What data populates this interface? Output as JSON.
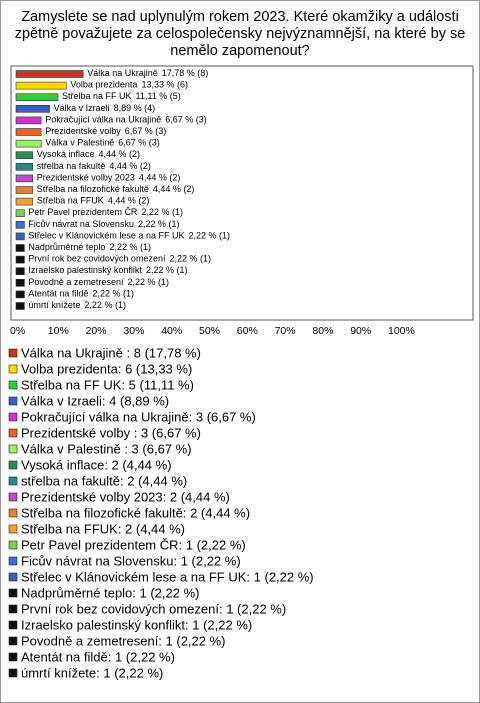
{
  "chart_data": {
    "type": "bar",
    "orientation": "horizontal",
    "title": "Zamyslete se nad uplynulým rokem 2023. Které okamžiky a události zpětně považujete za celospolečensky nejvýznamnější, na které by se nemělo zapomenout?",
    "categories": [
      "Válka na Ukrajině",
      "Volba prezidenta",
      "Střelba na FF UK",
      "Válka v Izraeli",
      "Pokračující válka na Ukrajině",
      "Prezidentské volby",
      "Válka v Palestině",
      "Vysoká inflace",
      "střelba na fakultě",
      "Prezidentské volby 2023",
      "Střelba na filozofické fakultě",
      "Střelba na FFUK",
      "Petr Pavel prezidentem ČR",
      "Ficův návrat na Slovensku",
      "Střelec v Klánovickém lese a na FF UK",
      "Nadprůměrné teplo",
      "První rok bez covidových omezení",
      "Izraelsko palestinský konflikt",
      "Povodně a zemetresení",
      "Atentát na fildě",
      "úmrtí knížete"
    ],
    "values": [
      17.78,
      13.33,
      11.11,
      8.89,
      6.67,
      6.67,
      6.67,
      4.44,
      4.44,
      4.44,
      4.44,
      4.44,
      2.22,
      2.22,
      2.22,
      2.22,
      2.22,
      2.22,
      2.22,
      2.22,
      2.22
    ],
    "value_labels": [
      "17,78 % (8)",
      "13,33 % (6)",
      "11,11 % (5)",
      "8,89 % (4)",
      "6,67 % (3)",
      "6,67 % (3)",
      "6,67 % (3)",
      "4,44 % (2)",
      "4,44 % (2)",
      "4,44 % (2)",
      "4,44 % (2)",
      "4,44 % (2)",
      "2,22 % (1)",
      "2,22 % (1)",
      "2,22 % (1)",
      "2,22 % (1)",
      "2,22 % (1)",
      "2,22 % (1)",
      "2,22 % (1)",
      "2,22 % (1)",
      "2,22 % (1)"
    ],
    "legend_labels": [
      "Válka na Ukrajině : 8 (17,78 %)",
      "Volba prezidenta: 6 (13,33 %)",
      "Střelba na FF UK: 5 (11,11 %)",
      "Válka v Izraeli: 4 (8,89 %)",
      "Pokračující válka na Ukrajině: 3 (6,67 %)",
      "Prezidentské volby : 3 (6,67 %)",
      "Válka v Palestině : 3 (6,67 %)",
      "Vysoká inflace: 2 (4,44 %)",
      "střelba na fakultě: 2 (4,44 %)",
      "Prezidentské volby 2023: 2 (4,44 %)",
      "Střelba na filozofické fakultě: 2 (4,44 %)",
      "Střelba na FFUK: 2 (4,44 %)",
      "Petr Pavel prezidentem ČR: 1 (2,22 %)",
      "Ficův návrat na Slovensku: 1 (2,22 %)",
      "Střelec v Klánovickém lese a na FF UK: 1 (2,22 %)",
      "Nadprůměrné teplo: 1 (2,22 %)",
      "První rok bez covidových omezení: 1 (2,22 %)",
      "Izraelsko palestinský konflikt: 1 (2,22 %)",
      "Povodně a zemetresení: 1 (2,22 %)",
      "Atentát na fildě: 1 (2,22 %)",
      "úmrtí knížete: 1 (2,22 %)"
    ],
    "colors": [
      "#c0392b",
      "#ffd700",
      "#2ecc40",
      "#3c5ccc",
      "#cc33cc",
      "#e8622a",
      "#99ee66",
      "#2e8b57",
      "#2a8a8a",
      "#b84fc4",
      "#e0803a",
      "#f0a030",
      "#7cd04a",
      "#3a6fd0",
      "#3a5fb0",
      "#111111",
      "#111111",
      "#111111",
      "#111111",
      "#111111",
      "#111111"
    ],
    "xlim": [
      0,
      100
    ],
    "xticks": [
      {
        "value": 0,
        "label": "0%"
      },
      {
        "value": 10,
        "label": "10%"
      },
      {
        "value": 20,
        "label": "20%"
      },
      {
        "value": 30,
        "label": "30%"
      },
      {
        "value": 40,
        "label": "40%"
      },
      {
        "value": 50,
        "label": "50%"
      },
      {
        "value": 60,
        "label": "60%"
      },
      {
        "value": 70,
        "label": "70%"
      },
      {
        "value": 80,
        "label": "80%"
      },
      {
        "value": 90,
        "label": "90%"
      },
      {
        "value": 100,
        "label": "100%"
      }
    ],
    "grid": false
  }
}
